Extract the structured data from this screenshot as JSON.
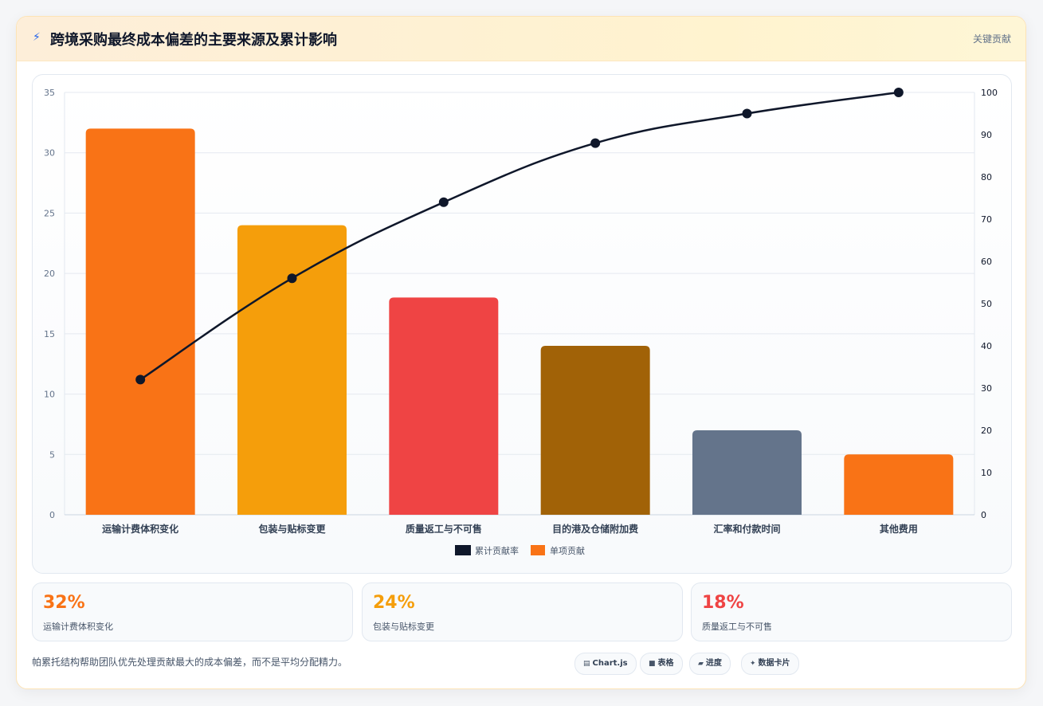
{
  "header": {
    "icon": "lightning-icon",
    "title": "跨境采购最终成本偏差的主要来源及累计影响",
    "tag": "关键贡献"
  },
  "chart_data": {
    "type": "bar",
    "categories": [
      "运输计费体积变化",
      "包装与贴标变更",
      "质量返工与不可售",
      "目的港及仓储附加费",
      "汇率和付款时间",
      "其他费用"
    ],
    "series": [
      {
        "name": "单项贡献",
        "type": "bar",
        "axis": "left",
        "values": [
          32,
          24,
          18,
          14,
          7,
          5
        ],
        "colors": [
          "#f97316",
          "#f59e0b",
          "#ef4444",
          "#a16207",
          "#64748b",
          "#f97316"
        ]
      },
      {
        "name": "累计贡献率",
        "type": "line",
        "axis": "right",
        "values": [
          32,
          56,
          74,
          88,
          95,
          100
        ],
        "color": "#0f172a"
      }
    ],
    "ylim_left": [
      0,
      35
    ],
    "yticks_left": [
      0,
      5,
      10,
      15,
      20,
      25,
      30,
      35
    ],
    "ylim_right": [
      0,
      100
    ],
    "yticks_right": [
      0,
      10,
      20,
      30,
      40,
      50,
      60,
      70,
      80,
      90,
      100
    ],
    "legend": [
      "累计贡献率",
      "单项贡献"
    ],
    "legend_position": "bottom",
    "grid": true
  },
  "stats": [
    {
      "value": "32%",
      "label": "运输计费体积变化",
      "color": "#f97316"
    },
    {
      "value": "24%",
      "label": "包装与贴标变更",
      "color": "#f59e0b"
    },
    {
      "value": "18%",
      "label": "质量返工与不可售",
      "color": "#ef4444"
    }
  ],
  "footer": {
    "note": "帕累托结构帮助团队优先处理贡献最大的成本偏差，而不是平均分配精力。",
    "pills": [
      {
        "icon": "chart-icon",
        "label": "Chart.js"
      },
      {
        "icon": "table-icon",
        "label": "表格"
      },
      {
        "icon": "progress-icon",
        "label": "进度"
      },
      {
        "icon": "sparkle-icon",
        "label": "数据卡片"
      }
    ]
  }
}
